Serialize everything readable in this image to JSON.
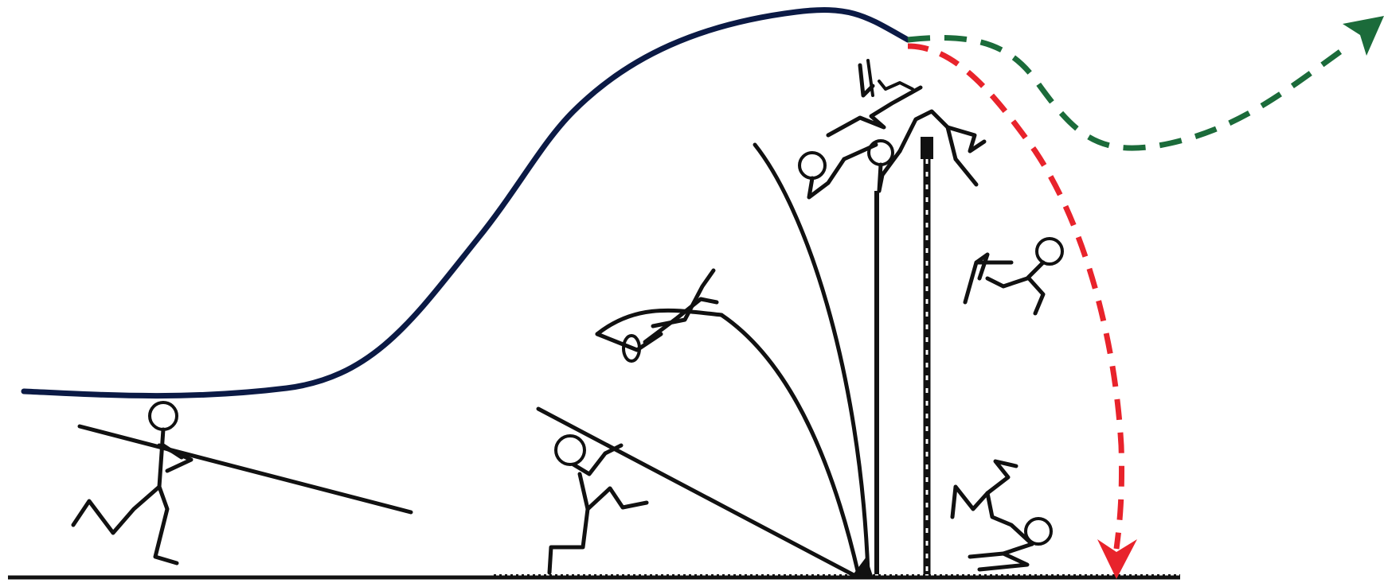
{
  "diagram": {
    "kind": "pole-vault-sequence",
    "colors": {
      "background": "#ffffff",
      "trajectory": "#0b1a45",
      "figure": "#111111",
      "green_path": "#1b6b3a",
      "red_path": "#e8232b"
    },
    "figures": [
      {
        "name": "vaulter-run-up"
      },
      {
        "name": "vaulter-plant"
      },
      {
        "name": "vaulter-takeoff"
      },
      {
        "name": "vaulter-pole-bend"
      },
      {
        "name": "vaulter-inverted"
      },
      {
        "name": "vaulter-bar-clearance"
      },
      {
        "name": "vaulter-falling"
      },
      {
        "name": "vaulter-landing"
      }
    ],
    "paths": [
      {
        "name": "center-of-mass-trajectory",
        "style": "solid"
      },
      {
        "name": "green-path",
        "style": "dashed",
        "ends_with": "arrow"
      },
      {
        "name": "red-path",
        "style": "dashed",
        "ends_with": "arrow"
      }
    ]
  }
}
